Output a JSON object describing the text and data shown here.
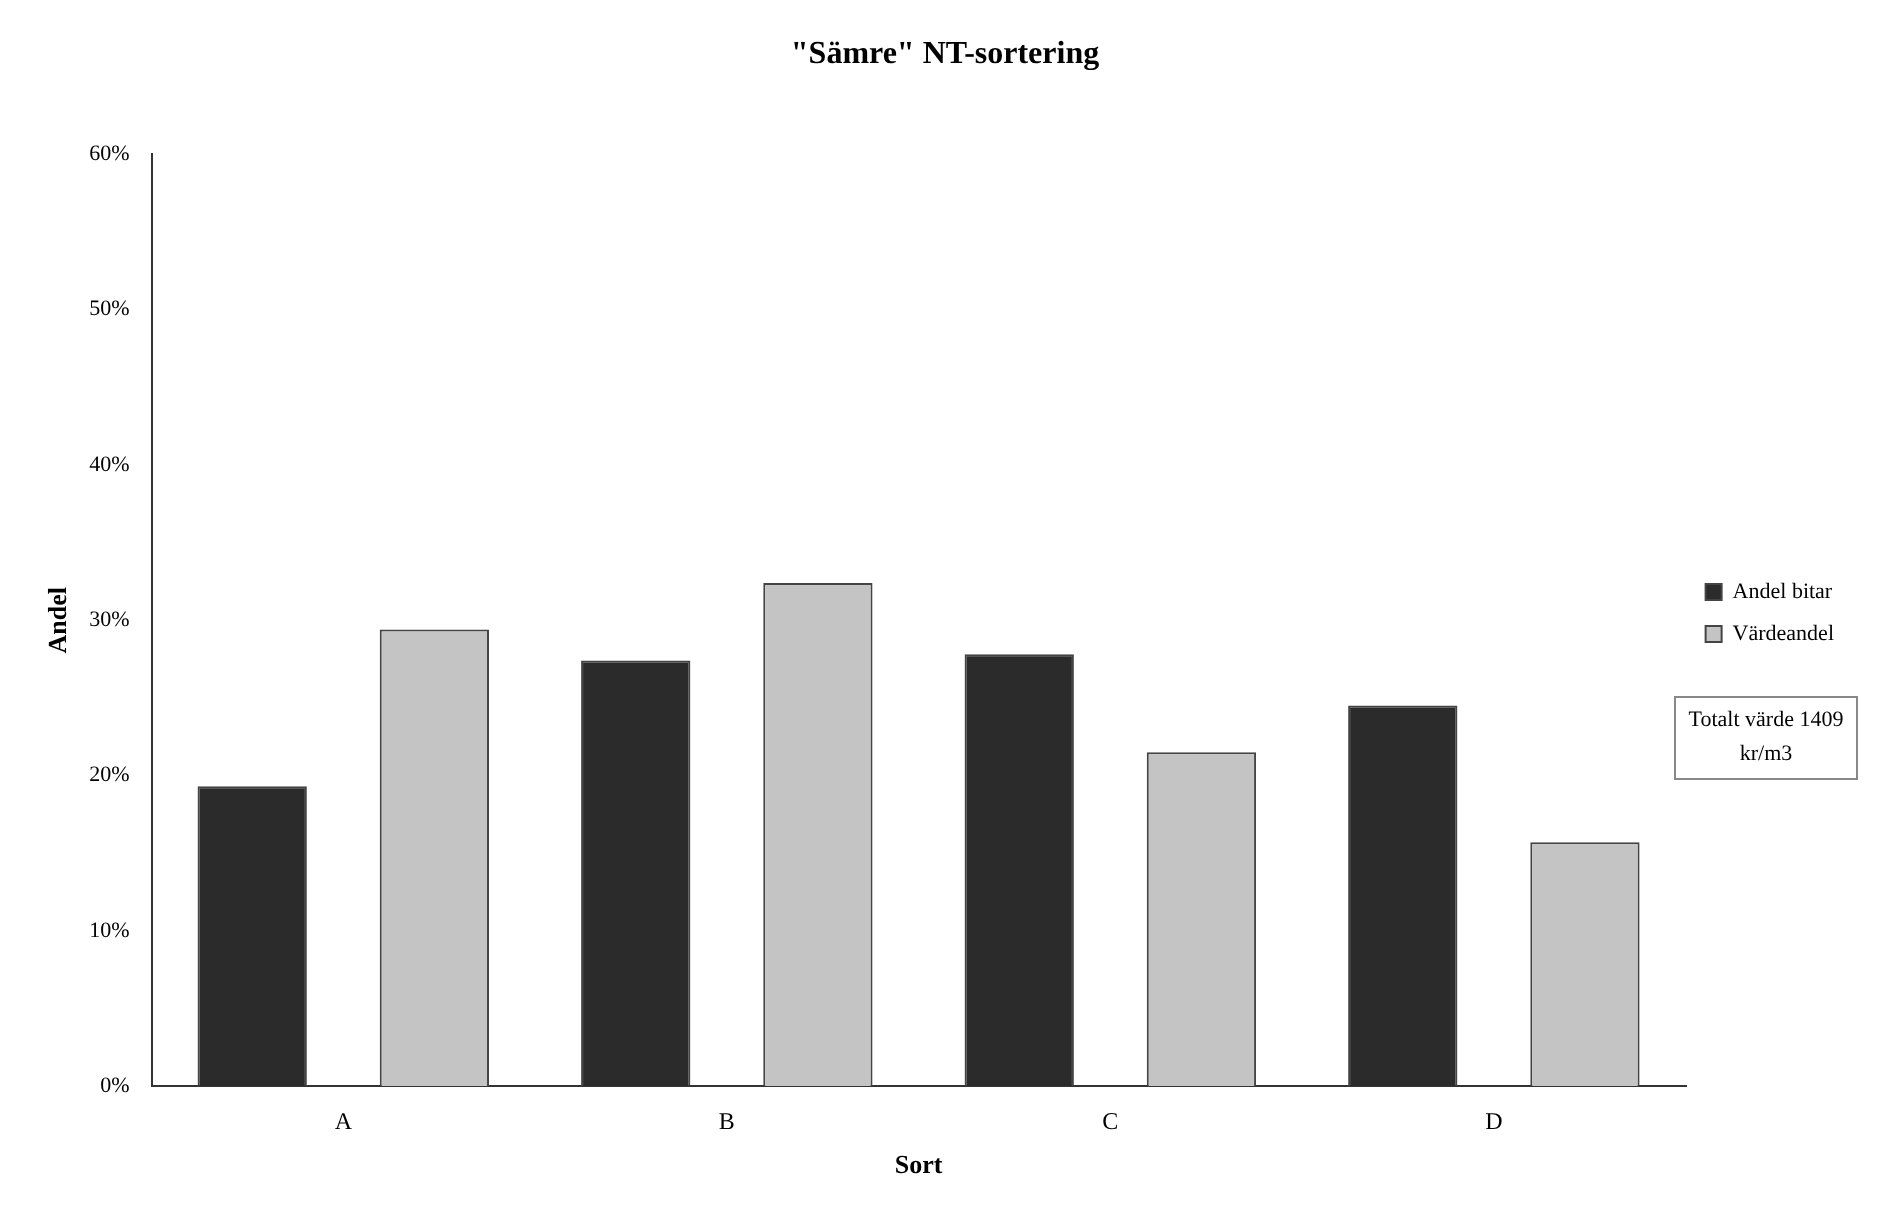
{
  "chart_data": {
    "type": "bar",
    "title": "\"Sämre\" NT-sortering",
    "xlabel": "Sort",
    "ylabel": "Andel",
    "categories": [
      "A",
      "B",
      "C",
      "D"
    ],
    "series": [
      {
        "name": "Andel bitar",
        "color": "#2b2b2b",
        "values": [
          19.3,
          27.4,
          27.8,
          24.5
        ]
      },
      {
        "name": "Värdeandel",
        "color": "#c4c4c4",
        "values": [
          29.4,
          32.4,
          21.5,
          15.7
        ]
      }
    ],
    "ylim": [
      0,
      60
    ],
    "yticks": [
      {
        "value": 0,
        "label": "0%"
      },
      {
        "value": 10,
        "label": "10%"
      },
      {
        "value": 20,
        "label": "20%"
      },
      {
        "value": 30,
        "label": "30%"
      },
      {
        "value": 40,
        "label": "40%"
      },
      {
        "value": 50,
        "label": "50%"
      },
      {
        "value": 60,
        "label": "60%"
      }
    ],
    "grid": false,
    "legend": "right",
    "annotations": [
      "Totalt värde 1409 kr/m3"
    ]
  }
}
